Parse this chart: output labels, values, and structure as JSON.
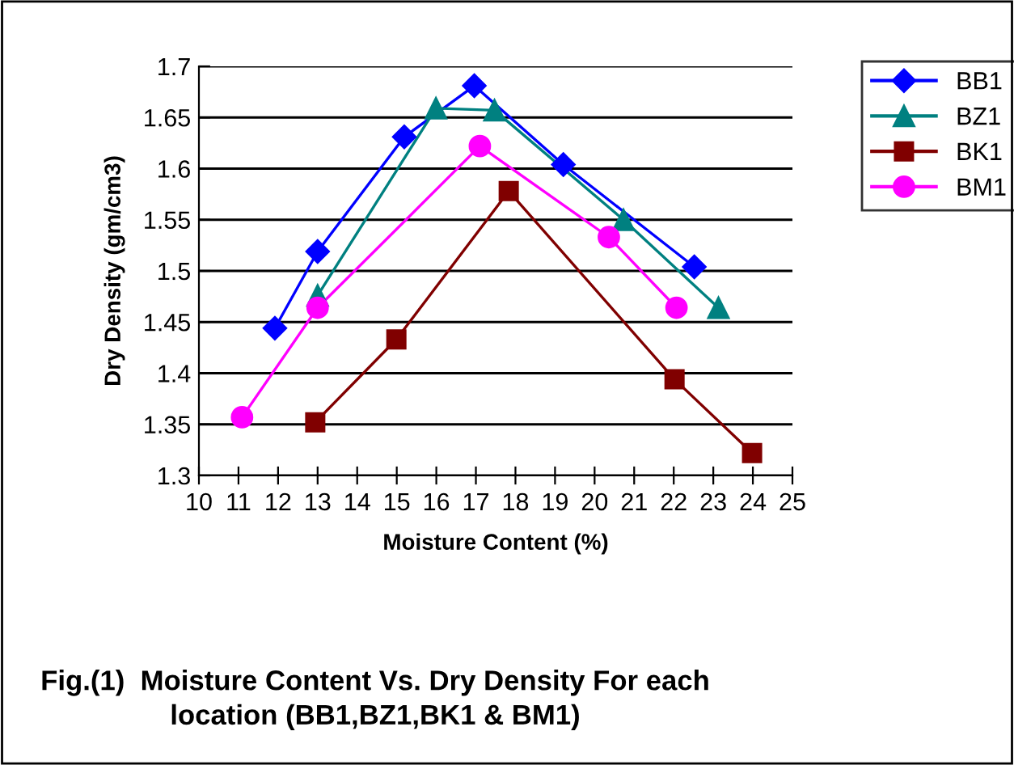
{
  "chart_data": {
    "type": "line",
    "xlabel": "Moisture Content (%)",
    "ylabel": "Dry Density (gm/cm3)",
    "xlim": [
      10,
      25
    ],
    "xticks": [
      10,
      11,
      12,
      13,
      14,
      15,
      16,
      17,
      18,
      19,
      20,
      21,
      22,
      23,
      24,
      25
    ],
    "ylim": [
      1.3,
      1.7
    ],
    "yticks": [
      {
        "value": 1.3,
        "label": "1.3"
      },
      {
        "value": 1.35,
        "label": "1.35"
      },
      {
        "value": 1.4,
        "label": "1.4"
      },
      {
        "value": 1.45,
        "label": "1.45"
      },
      {
        "value": 1.5,
        "label": "1.5"
      },
      {
        "value": 1.55,
        "label": "1.55"
      },
      {
        "value": 1.6,
        "label": "1.6"
      },
      {
        "value": 1.65,
        "label": "1.65"
      },
      {
        "value": 1.7,
        "label": "1.7"
      }
    ],
    "grid": "y",
    "legend": "top right",
    "series": [
      {
        "name": "BB1",
        "color": "#0000ff",
        "marker": "diamond",
        "x": [
          11.92,
          13.0,
          15.19,
          16.96,
          19.21,
          22.52
        ],
        "values": [
          1.444,
          1.519,
          1.631,
          1.681,
          1.604,
          1.504
        ]
      },
      {
        "name": "BZ1",
        "color": "#008080",
        "marker": "triangle",
        "x": [
          13.0,
          15.99,
          17.47,
          20.73,
          23.13
        ],
        "values": [
          1.476,
          1.659,
          1.657,
          1.55,
          1.464
        ]
      },
      {
        "name": "BK1",
        "color": "#800000",
        "marker": "square",
        "x": [
          12.94,
          14.99,
          17.83,
          22.02,
          23.98
        ],
        "values": [
          1.352,
          1.433,
          1.578,
          1.394,
          1.322
        ]
      },
      {
        "name": "BM1",
        "color": "#ff00ff",
        "marker": "circle",
        "x": [
          11.09,
          13.0,
          17.1,
          20.36,
          22.07
        ],
        "values": [
          1.357,
          1.464,
          1.622,
          1.533,
          1.464
        ]
      }
    ],
    "annotations": [
      "Fig.(1)  Moisture Content Vs. Dry Density For each location (BB1,BZ1,BK1 & BM1)"
    ]
  }
}
